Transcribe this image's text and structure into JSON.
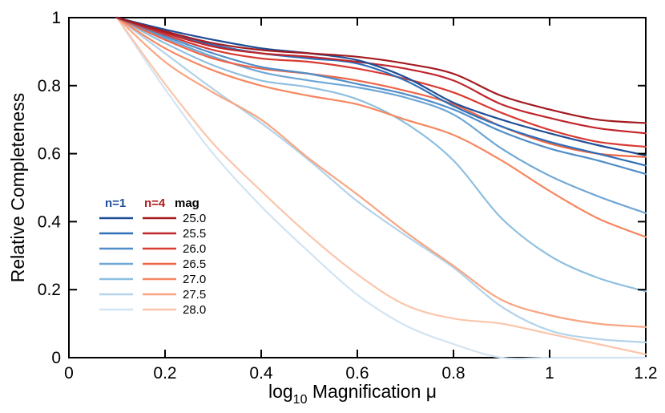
{
  "chart_data": {
    "type": "line",
    "title": "",
    "xlabel_main": "log",
    "xlabel_sub": "10",
    "xlabel_rest": " Magnification μ",
    "ylabel": "Relative Completeness",
    "xlim": [
      0,
      1.2
    ],
    "ylim": [
      0,
      1
    ],
    "xticks": [
      0,
      0.2,
      0.4,
      0.6,
      0.8,
      1,
      1.2
    ],
    "xtick_labels": [
      "0",
      "0.2",
      "0.4",
      "0.6",
      "0.8",
      "1",
      "1.2"
    ],
    "yticks": [
      0,
      0.2,
      0.4,
      0.6,
      0.8,
      1
    ],
    "ytick_labels": [
      "0",
      "0.2",
      "0.4",
      "0.6",
      "0.8",
      "1"
    ],
    "x": [
      0.1,
      0.2,
      0.3,
      0.4,
      0.5,
      0.6,
      0.7,
      0.8,
      0.9,
      1.0,
      1.1,
      1.2
    ],
    "legend": {
      "header_n1": "n=1",
      "header_n4": "n=4",
      "header_mag": "mag",
      "color_n1": "#1f4e96",
      "color_n4": "#b01c1c",
      "mags": [
        "25.0",
        "25.5",
        "26.0",
        "26.5",
        "27.0",
        "27.5",
        "28.0"
      ]
    },
    "series": [
      {
        "name": "n=1 mag 25.0",
        "color": "#1f4e96",
        "values": [
          1.0,
          0.965,
          0.935,
          0.91,
          0.895,
          0.875,
          0.825,
          0.75,
          0.7,
          0.66,
          0.625,
          0.595
        ]
      },
      {
        "name": "n=1 mag 25.5",
        "color": "#2e6fb8",
        "values": [
          1.0,
          0.955,
          0.92,
          0.895,
          0.88,
          0.865,
          0.815,
          0.74,
          0.68,
          0.635,
          0.6,
          0.565
        ]
      },
      {
        "name": "n=1 mag 26.0",
        "color": "#4f8dc8",
        "values": [
          1.0,
          0.945,
          0.895,
          0.855,
          0.835,
          0.805,
          0.775,
          0.73,
          0.665,
          0.615,
          0.58,
          0.54
        ]
      },
      {
        "name": "n=1 mag 26.5",
        "color": "#6ea6d5",
        "values": [
          1.0,
          0.94,
          0.885,
          0.84,
          0.815,
          0.795,
          0.765,
          0.715,
          0.615,
          0.535,
          0.475,
          0.425
        ]
      },
      {
        "name": "n=1 mag 27.0",
        "color": "#8ebfe0",
        "values": [
          1.0,
          0.925,
          0.86,
          0.815,
          0.795,
          0.76,
          0.69,
          0.58,
          0.41,
          0.3,
          0.235,
          0.195
        ]
      },
      {
        "name": "n=1 mag 27.5",
        "color": "#b2d3ea",
        "values": [
          1.0,
          0.895,
          0.79,
          0.69,
          0.58,
          0.46,
          0.36,
          0.265,
          0.15,
          0.08,
          0.055,
          0.045
        ]
      },
      {
        "name": "n=1 mag 28.0",
        "color": "#d2e4f3",
        "values": [
          1.0,
          0.79,
          0.6,
          0.445,
          0.31,
          0.185,
          0.095,
          0.04,
          0.0,
          0.0,
          0.0,
          0.0
        ]
      },
      {
        "name": "n=4 mag 25.0",
        "color": "#a31a1f",
        "values": [
          1.0,
          0.96,
          0.925,
          0.905,
          0.895,
          0.885,
          0.865,
          0.835,
          0.77,
          0.73,
          0.7,
          0.69
        ]
      },
      {
        "name": "n=4 mag 25.5",
        "color": "#c0242b",
        "values": [
          1.0,
          0.955,
          0.915,
          0.895,
          0.885,
          0.87,
          0.85,
          0.815,
          0.745,
          0.705,
          0.675,
          0.66
        ]
      },
      {
        "name": "n=4 mag 26.0",
        "color": "#d83a32",
        "values": [
          1.0,
          0.95,
          0.905,
          0.88,
          0.87,
          0.85,
          0.82,
          0.78,
          0.72,
          0.67,
          0.635,
          0.62
        ]
      },
      {
        "name": "n=4 mag 26.5",
        "color": "#ee6446",
        "values": [
          1.0,
          0.935,
          0.88,
          0.85,
          0.835,
          0.815,
          0.785,
          0.745,
          0.68,
          0.63,
          0.6,
          0.59
        ]
      },
      {
        "name": "n=4 mag 27.0",
        "color": "#f58760",
        "values": [
          1.0,
          0.91,
          0.845,
          0.8,
          0.77,
          0.745,
          0.7,
          0.655,
          0.58,
          0.49,
          0.41,
          0.355
        ]
      },
      {
        "name": "n=4 mag 27.5",
        "color": "#f8a582",
        "values": [
          1.0,
          0.87,
          0.78,
          0.7,
          0.585,
          0.48,
          0.37,
          0.27,
          0.17,
          0.125,
          0.1,
          0.09
        ]
      },
      {
        "name": "n=4 mag 28.0",
        "color": "#fbc5ab",
        "values": [
          1.0,
          0.805,
          0.63,
          0.49,
          0.36,
          0.245,
          0.155,
          0.115,
          0.1,
          0.07,
          0.04,
          0.01
        ]
      }
    ]
  }
}
